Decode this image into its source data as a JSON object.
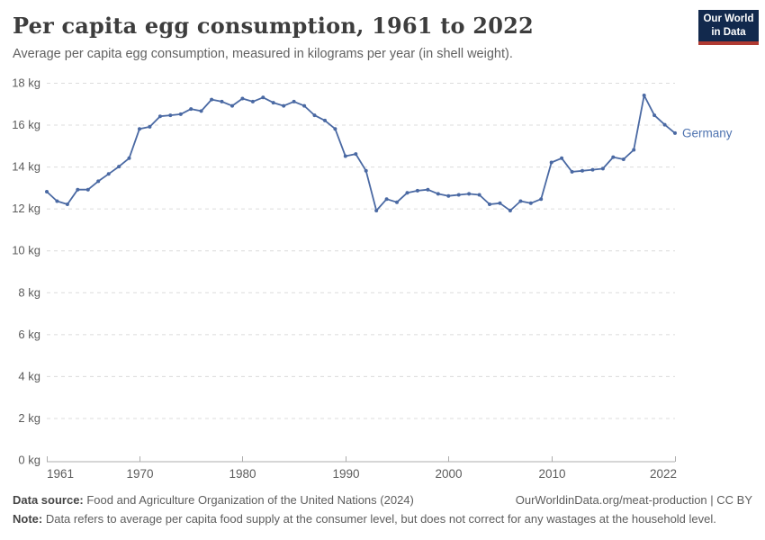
{
  "header": {
    "title": "Per capita egg consumption, 1961 to 2022",
    "subtitle": "Average per capita egg consumption, measured in kilograms per year (in shell weight).",
    "logo": {
      "line1": "Our World",
      "line2": "in Data"
    }
  },
  "colors": {
    "line": "#4a69a3",
    "entity_label": "#4e73b0",
    "gridline": "#dcdcdc",
    "axis": "#adadad",
    "tick_text": "#5c5c5c",
    "logo_bg": "#12294d",
    "logo_bar": "#b03a32"
  },
  "chart_data": {
    "type": "line",
    "title": "Per capita egg consumption, 1961 to 2022",
    "subtitle": "Average per capita egg consumption, measured in kilograms per year (in shell weight).",
    "xlabel": "",
    "ylabel": "kg",
    "ylim": [
      0,
      18
    ],
    "ytick_step": 2,
    "ytick_suffix": " kg",
    "xticks": [
      1961,
      1970,
      1980,
      1990,
      2000,
      2010,
      2022
    ],
    "grid": "horizontal-dashed",
    "legend_position": "end-of-line-label",
    "x": [
      1961,
      1962,
      1963,
      1964,
      1965,
      1966,
      1967,
      1968,
      1969,
      1970,
      1971,
      1972,
      1973,
      1974,
      1975,
      1976,
      1977,
      1978,
      1979,
      1980,
      1981,
      1982,
      1983,
      1984,
      1985,
      1986,
      1987,
      1988,
      1989,
      1990,
      1991,
      1992,
      1993,
      1994,
      1995,
      1996,
      1997,
      1998,
      1999,
      2000,
      2001,
      2002,
      2003,
      2004,
      2005,
      2006,
      2007,
      2008,
      2009,
      2010,
      2011,
      2012,
      2013,
      2014,
      2015,
      2016,
      2017,
      2018,
      2019,
      2020,
      2021,
      2022
    ],
    "series": [
      {
        "name": "Germany",
        "values": [
          12.8,
          12.35,
          12.2,
          12.9,
          12.9,
          13.3,
          13.65,
          14.0,
          14.4,
          15.8,
          15.9,
          16.4,
          16.45,
          16.5,
          16.75,
          16.65,
          17.2,
          17.1,
          16.9,
          17.25,
          17.1,
          17.3,
          17.05,
          16.9,
          17.1,
          16.9,
          16.45,
          16.2,
          15.8,
          14.5,
          14.6,
          13.8,
          11.9,
          12.45,
          12.3,
          12.75,
          12.85,
          12.9,
          12.7,
          12.6,
          12.65,
          12.7,
          12.65,
          12.2,
          12.25,
          11.9,
          12.35,
          12.25,
          12.45,
          14.2,
          14.4,
          13.75,
          13.8,
          13.85,
          13.9,
          14.45,
          14.35,
          14.8,
          17.4,
          16.45,
          16.0,
          15.6
        ]
      }
    ]
  },
  "footer": {
    "source_label": "Data source:",
    "source_text": " Food and Agriculture Organization of the United Nations (2024)",
    "link_text": "OurWorldinData.org/meat-production | CC BY",
    "note_label": "Note:",
    "note_text": " Data refers to average per capita food supply at the consumer level, but does not correct for any wastages at the household level."
  }
}
